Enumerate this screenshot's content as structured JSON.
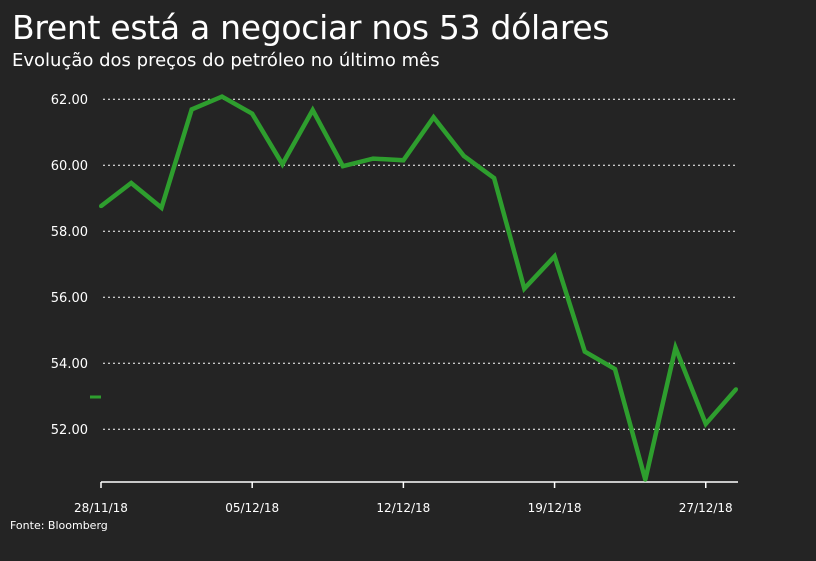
{
  "chart_data": {
    "type": "line",
    "title": "Brent está a negociar nos 53 dólares",
    "subtitle": "Evolução dos preços do petróleo no último mês",
    "source": "Fonte: Bloomberg",
    "xlabel": "",
    "ylabel": "",
    "ylim": [
      50.4,
      62.4
    ],
    "yticks": [
      52,
      54,
      56,
      58,
      60,
      62
    ],
    "ytick_labels": [
      "52.00",
      "54.00",
      "56.00",
      "58.00",
      "60.00",
      "62.00"
    ],
    "grid": true,
    "series_color": "#2e9e2e",
    "x_tick_labels": [
      {
        "index": 0,
        "label": "28/11/18"
      },
      {
        "index": 5,
        "label": "05/12/18"
      },
      {
        "index": 10,
        "label": "12/12/18"
      },
      {
        "index": 15,
        "label": "19/12/18"
      },
      {
        "index": 20,
        "label": "27/12/18"
      }
    ],
    "series": [
      {
        "name": "Brent",
        "values": [
          58.76,
          59.46,
          58.71,
          61.69,
          62.08,
          61.56,
          60.03,
          61.67,
          59.97,
          60.2,
          60.15,
          61.45,
          60.28,
          59.61,
          56.26,
          57.24,
          54.35,
          53.82,
          50.47,
          54.47,
          52.16,
          53.21
        ]
      }
    ]
  }
}
